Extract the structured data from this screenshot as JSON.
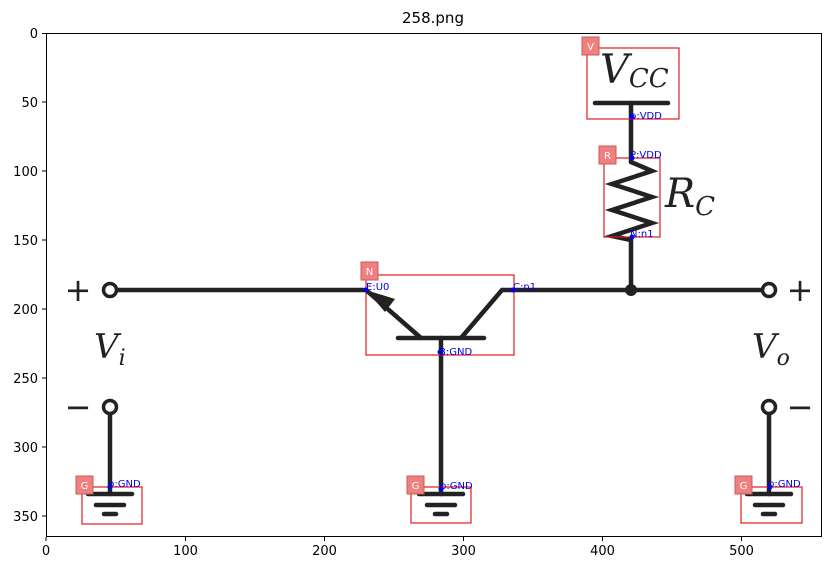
{
  "title": "258.png",
  "axes": {
    "x_ticks": [
      "0",
      "100",
      "200",
      "300",
      "400",
      "500"
    ],
    "y_ticks": [
      "0",
      "50",
      "100",
      "150",
      "200",
      "250",
      "300",
      "350"
    ]
  },
  "circuit": {
    "supply_label": "V",
    "supply_subscript": "CC",
    "resistor_label": "R",
    "resistor_subscript": "C",
    "input_label": "V",
    "input_subscript": "i",
    "output_label": "V",
    "output_subscript": "o",
    "plus_sign": "+",
    "minus_sign": "−"
  },
  "components": [
    {
      "tag": "V",
      "name": "vcc-source"
    },
    {
      "tag": "R",
      "name": "resistor-rc"
    },
    {
      "tag": "N",
      "name": "transistor-npn"
    },
    {
      "tag": "G",
      "name": "ground-input"
    },
    {
      "tag": "G",
      "name": "ground-center"
    },
    {
      "tag": "G",
      "name": "ground-output"
    }
  ],
  "pins": [
    {
      "label": "p:VDD",
      "name": "pin-vcc-p"
    },
    {
      "label": "P:VDD",
      "name": "pin-rc-p"
    },
    {
      "label": "N:n1",
      "name": "pin-rc-n"
    },
    {
      "label": "E:U0",
      "name": "pin-npn-e"
    },
    {
      "label": "C:n1",
      "name": "pin-npn-c"
    },
    {
      "label": "B:GND",
      "name": "pin-npn-b"
    },
    {
      "label": "p:GND",
      "name": "pin-gnd-in"
    },
    {
      "label": "p:GND",
      "name": "pin-gnd-center"
    },
    {
      "label": "p:GND",
      "name": "pin-gnd-out"
    }
  ]
}
